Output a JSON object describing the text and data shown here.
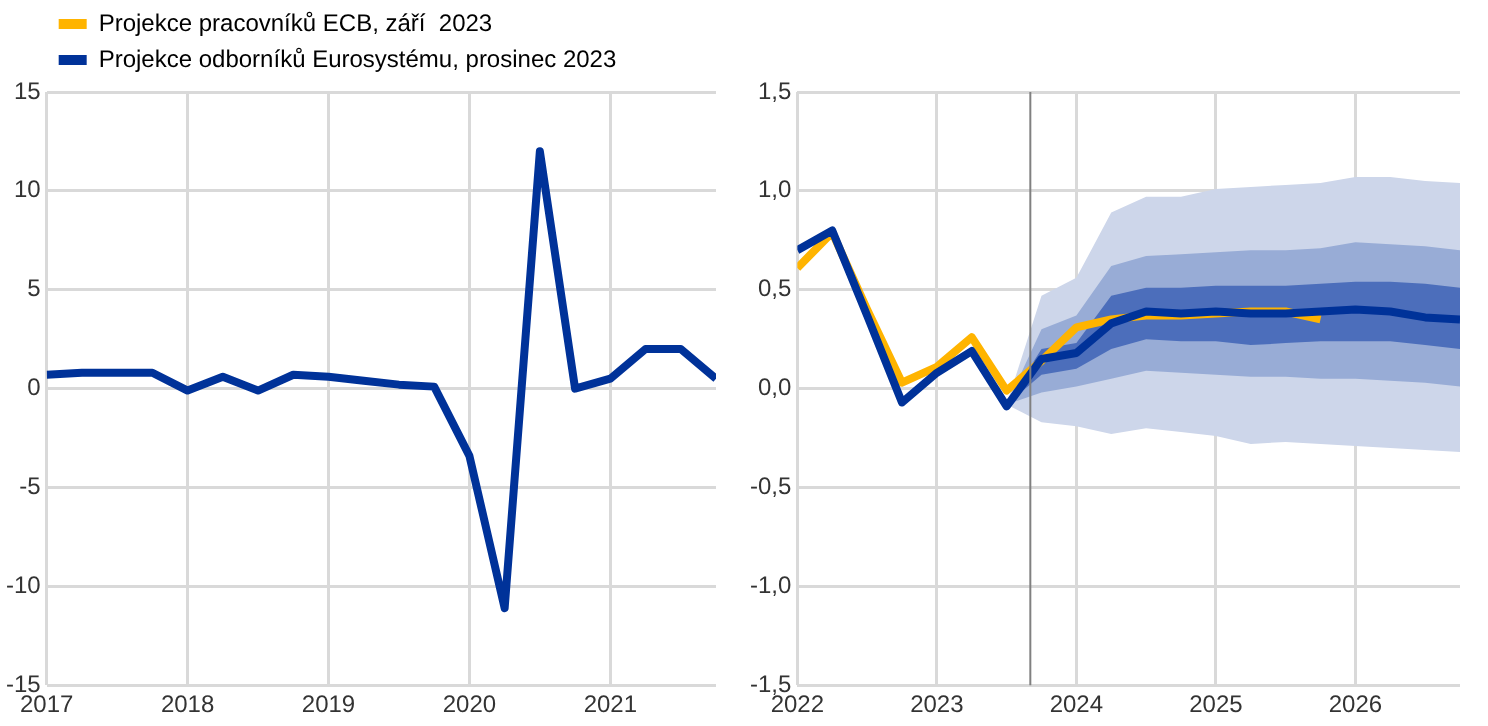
{
  "chart_data": [
    {
      "type": "line",
      "x": [
        2017,
        2017.25,
        2017.5,
        2017.75,
        2018,
        2018.25,
        2018.5,
        2018.75,
        2019,
        2019.25,
        2019.5,
        2019.75,
        2020,
        2020.25,
        2020.5,
        2020.75,
        2021,
        2021.25,
        2021.5,
        2021.75
      ],
      "series": [
        {
          "name": "Projekce pracovníků ECB, září  2023",
          "color": "#ffb400",
          "values": [
            null,
            null,
            null,
            null,
            null,
            null,
            null,
            null,
            null,
            null,
            null,
            null,
            null,
            null,
            null,
            null,
            null,
            null,
            null,
            null
          ]
        },
        {
          "name": "Projekce odborníků Eurosystému, prosinec 2023",
          "color": "#003299",
          "values": [
            0.7,
            0.8,
            0.8,
            0.8,
            -0.1,
            0.6,
            -0.1,
            0.7,
            0.6,
            0.4,
            0.2,
            0.1,
            -3.4,
            -11.1,
            12.0,
            0.0,
            0.5,
            2.0,
            2.0,
            0.5
          ]
        }
      ],
      "xlim": [
        2017,
        2021.75
      ],
      "xticks": [
        2017,
        2018,
        2019,
        2020,
        2021
      ],
      "ylim": [
        -15,
        15
      ],
      "yticks": [
        -15,
        -10,
        -5,
        0,
        5,
        10,
        15
      ],
      "grid": true,
      "legend": "top left",
      "marker": "none",
      "line_style": "solid"
    },
    {
      "type": "line",
      "x": [
        2022,
        2022.25,
        2022.5,
        2022.75,
        2023,
        2023.25,
        2023.5,
        2023.75,
        2024,
        2024.25,
        2024.5,
        2024.75,
        2025,
        2025.25,
        2025.5,
        2025.75,
        2026,
        2026.25,
        2026.5,
        2026.75
      ],
      "series": [
        {
          "type": "area",
          "color": "#cdd6ea",
          "x": [
            2023.5,
            2023.75,
            2024,
            2024.25,
            2024.5,
            2024.75,
            2025,
            2025.25,
            2025.5,
            2025.75,
            2026,
            2026.25,
            2026.5,
            2026.75
          ],
          "values": [
            null,
            null,
            null,
            null,
            null,
            null,
            null,
            null,
            null,
            null,
            null,
            null,
            null,
            null
          ],
          "lower": [
            -0.08,
            -0.17,
            -0.19,
            -0.23,
            -0.2,
            -0.22,
            -0.24,
            -0.28,
            -0.27,
            -0.28,
            -0.29,
            -0.3,
            -0.31,
            -0.32
          ],
          "upper": [
            -0.08,
            0.47,
            0.56,
            0.89,
            0.97,
            0.97,
            1.01,
            1.02,
            1.03,
            1.04,
            1.07,
            1.07,
            1.05,
            1.04
          ]
        },
        {
          "type": "area",
          "color": "#98acd6",
          "x": [
            2023.5,
            2023.75,
            2024,
            2024.25,
            2024.5,
            2024.75,
            2025,
            2025.25,
            2025.5,
            2025.75,
            2026,
            2026.25,
            2026.5,
            2026.75
          ],
          "values": [
            null,
            null,
            null,
            null,
            null,
            null,
            null,
            null,
            null,
            null,
            null,
            null,
            null,
            null
          ],
          "lower": [
            -0.08,
            -0.02,
            0.01,
            0.05,
            0.09,
            0.08,
            0.07,
            0.06,
            0.06,
            0.05,
            0.05,
            0.04,
            0.03,
            0.01
          ],
          "upper": [
            -0.08,
            0.3,
            0.37,
            0.62,
            0.67,
            0.68,
            0.69,
            0.7,
            0.7,
            0.71,
            0.74,
            0.73,
            0.72,
            0.7
          ]
        },
        {
          "type": "area",
          "color": "#4c6ebb",
          "x": [
            2023.5,
            2023.75,
            2024,
            2024.25,
            2024.5,
            2024.75,
            2025,
            2025.25,
            2025.5,
            2025.75,
            2026,
            2026.25,
            2026.5,
            2026.75
          ],
          "values": [
            null,
            null,
            null,
            null,
            null,
            null,
            null,
            null,
            null,
            null,
            null,
            null,
            null,
            null
          ],
          "lower": [
            -0.08,
            0.07,
            0.1,
            0.2,
            0.25,
            0.24,
            0.24,
            0.22,
            0.23,
            0.24,
            0.24,
            0.24,
            0.22,
            0.2
          ],
          "upper": [
            -0.08,
            0.2,
            0.23,
            0.47,
            0.51,
            0.51,
            0.52,
            0.52,
            0.52,
            0.53,
            0.54,
            0.54,
            0.53,
            0.51
          ]
        },
        {
          "color": "#ffb400",
          "values": [
            0.61,
            0.79,
            0.4,
            0.03,
            0.11,
            0.26,
            -0.01,
            0.14,
            0.31,
            0.35,
            0.37,
            0.37,
            0.38,
            0.39,
            0.39,
            0.35,
            null,
            null,
            null,
            null
          ]
        },
        {
          "color": "#003299",
          "values": [
            0.7,
            0.8,
            0.37,
            -0.07,
            0.08,
            0.19,
            -0.09,
            0.15,
            0.18,
            0.33,
            0.39,
            0.38,
            0.39,
            0.38,
            0.38,
            0.39,
            0.4,
            0.39,
            0.36,
            0.35
          ]
        }
      ],
      "xlim": [
        2022,
        2026.75
      ],
      "xticks": [
        2022,
        2023,
        2024,
        2025,
        2026
      ],
      "ylim": [
        -1.5,
        1.5
      ],
      "yticks": [
        {
          "value": -1.5,
          "label": "-1,5"
        },
        {
          "value": -1,
          "label": "-1,0"
        },
        {
          "value": -0.5,
          "label": "-0,5"
        },
        {
          "value": 0,
          "label": "0,0"
        },
        {
          "value": 0.5,
          "label": "0,5"
        },
        {
          "value": 1,
          "label": "1,0"
        },
        {
          "value": 1.5,
          "label": "1,5"
        }
      ],
      "ref_lines": [
        {
          "axis": "x",
          "value": 2023.67,
          "color": "#808080"
        }
      ],
      "grid": true,
      "marker": "none",
      "line_style": "solid"
    }
  ]
}
